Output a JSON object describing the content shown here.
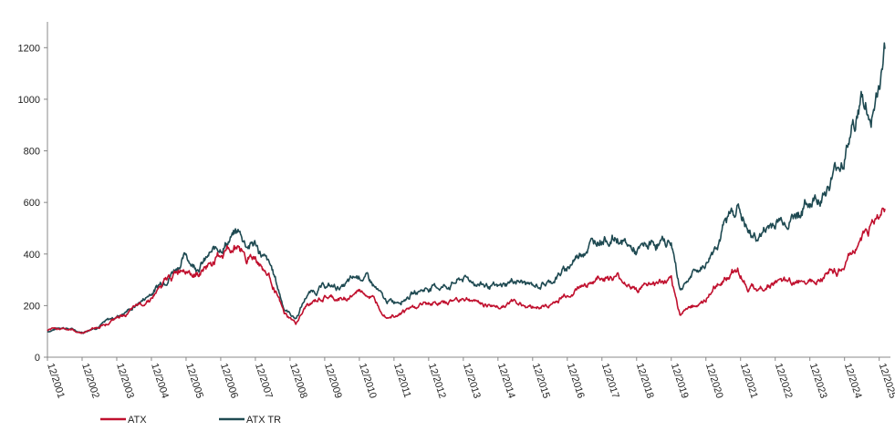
{
  "chart_data": {
    "type": "line",
    "title": "",
    "xlabel": "",
    "ylabel": "",
    "ylim": [
      0,
      1300
    ],
    "yticks": [
      0,
      200,
      400,
      600,
      800,
      1000,
      1200
    ],
    "xticks": [
      "12/2001",
      "12/2002",
      "12/2003",
      "12/2004",
      "12/2005",
      "12/2006",
      "12/2007",
      "12/2008",
      "12/2009",
      "12/2010",
      "12/2011",
      "12/2012",
      "12/2013",
      "12/2014",
      "12/2015",
      "12/2016",
      "12/2017",
      "12/2018",
      "12/2019",
      "12/2020",
      "12/2021",
      "12/2022",
      "12/2023",
      "12/2024",
      "12/2025"
    ],
    "grid": false,
    "legend": "bottom-left",
    "series": [
      {
        "name": "ATX",
        "color": "#c0102e",
        "points": [
          [
            "12/2001",
            100
          ],
          [
            "05/2002",
            115
          ],
          [
            "12/2002",
            95
          ],
          [
            "06/2003",
            120
          ],
          [
            "12/2003",
            150
          ],
          [
            "06/2004",
            185
          ],
          [
            "12/2004",
            235
          ],
          [
            "06/2005",
            300
          ],
          [
            "12/2005",
            360
          ],
          [
            "03/2006",
            330
          ],
          [
            "06/2006",
            340
          ],
          [
            "12/2006",
            395
          ],
          [
            "06/2007",
            435
          ],
          [
            "09/2007",
            390
          ],
          [
            "12/2007",
            390
          ],
          [
            "06/2008",
            290
          ],
          [
            "10/2008",
            165
          ],
          [
            "02/2009",
            130
          ],
          [
            "06/2009",
            200
          ],
          [
            "12/2009",
            230
          ],
          [
            "06/2010",
            220
          ],
          [
            "12/2010",
            255
          ],
          [
            "03/2011",
            245
          ],
          [
            "09/2011",
            170
          ],
          [
            "12/2011",
            170
          ],
          [
            "06/2012",
            190
          ],
          [
            "12/2012",
            210
          ],
          [
            "06/2013",
            210
          ],
          [
            "12/2013",
            230
          ],
          [
            "06/2014",
            210
          ],
          [
            "12/2014",
            195
          ],
          [
            "06/2015",
            215
          ],
          [
            "12/2015",
            195
          ],
          [
            "06/2016",
            200
          ],
          [
            "12/2016",
            240
          ],
          [
            "06/2017",
            285
          ],
          [
            "12/2017",
            310
          ],
          [
            "06/2018",
            300
          ],
          [
            "12/2018",
            265
          ],
          [
            "06/2019",
            285
          ],
          [
            "12/2019",
            285
          ],
          [
            "03/2020",
            165
          ],
          [
            "06/2020",
            195
          ],
          [
            "12/2020",
            220
          ],
          [
            "06/2021",
            305
          ],
          [
            "11/2021",
            345
          ],
          [
            "03/2022",
            270
          ],
          [
            "06/2022",
            265
          ],
          [
            "12/2022",
            290
          ],
          [
            "06/2023",
            285
          ],
          [
            "12/2023",
            310
          ],
          [
            "06/2024",
            325
          ],
          [
            "12/2024",
            350
          ],
          [
            "06/2025",
            470
          ],
          [
            "10/2025",
            520
          ],
          [
            "12/2025",
            545
          ],
          [
            "02/2026",
            575
          ]
        ]
      },
      {
        "name": "ATX TR",
        "color": "#1f4a52",
        "points": [
          [
            "12/2001",
            100
          ],
          [
            "05/2002",
            118
          ],
          [
            "12/2002",
            97
          ],
          [
            "06/2003",
            125
          ],
          [
            "12/2003",
            158
          ],
          [
            "06/2004",
            195
          ],
          [
            "12/2004",
            250
          ],
          [
            "06/2005",
            320
          ],
          [
            "12/2005",
            395
          ],
          [
            "03/2006",
            355
          ],
          [
            "06/2006",
            370
          ],
          [
            "12/2006",
            430
          ],
          [
            "06/2007",
            485
          ],
          [
            "09/2007",
            440
          ],
          [
            "12/2007",
            440
          ],
          [
            "06/2008",
            330
          ],
          [
            "10/2008",
            190
          ],
          [
            "02/2009",
            150
          ],
          [
            "06/2009",
            245
          ],
          [
            "12/2009",
            275
          ],
          [
            "06/2010",
            270
          ],
          [
            "12/2010",
            315
          ],
          [
            "03/2011",
            305
          ],
          [
            "09/2011",
            215
          ],
          [
            "12/2011",
            215
          ],
          [
            "06/2012",
            245
          ],
          [
            "12/2012",
            270
          ],
          [
            "06/2013",
            275
          ],
          [
            "12/2013",
            305
          ],
          [
            "06/2014",
            285
          ],
          [
            "12/2014",
            265
          ],
          [
            "06/2015",
            300
          ],
          [
            "12/2015",
            275
          ],
          [
            "06/2016",
            290
          ],
          [
            "12/2016",
            345
          ],
          [
            "06/2017",
            425
          ],
          [
            "12/2017",
            470
          ],
          [
            "06/2018",
            455
          ],
          [
            "12/2018",
            405
          ],
          [
            "06/2019",
            440
          ],
          [
            "12/2019",
            445
          ],
          [
            "03/2020",
            265
          ],
          [
            "06/2020",
            310
          ],
          [
            "12/2020",
            360
          ],
          [
            "06/2021",
            500
          ],
          [
            "11/2021",
            595
          ],
          [
            "03/2022",
            470
          ],
          [
            "06/2022",
            465
          ],
          [
            "12/2022",
            525
          ],
          [
            "06/2023",
            545
          ],
          [
            "12/2023",
            600
          ],
          [
            "06/2024",
            655
          ],
          [
            "12/2024",
            790
          ],
          [
            "06/2025",
            1000
          ],
          [
            "09/2025",
            920
          ],
          [
            "12/2025",
            1040
          ],
          [
            "02/2026",
            1195
          ]
        ]
      }
    ]
  }
}
